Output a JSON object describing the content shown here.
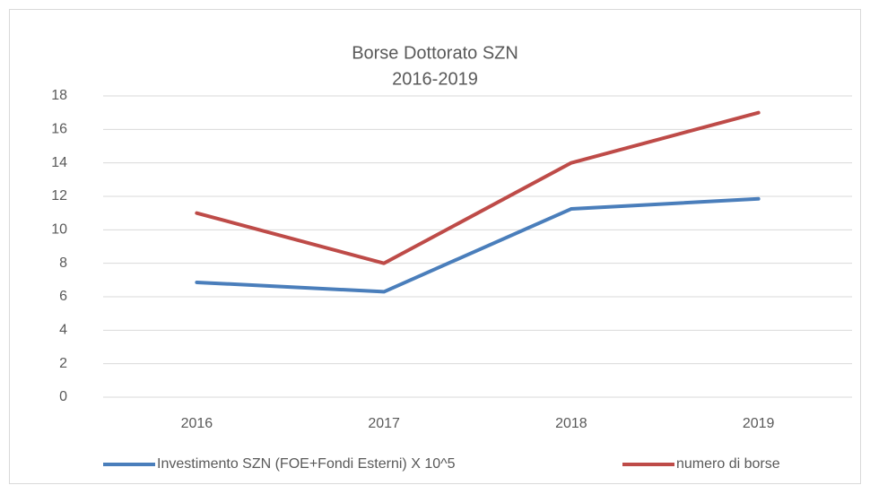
{
  "chart_data": {
    "type": "line",
    "title": "Borse Dottorato SZN",
    "subtitle": "2016-2019",
    "categories": [
      "2016",
      "2017",
      "2018",
      "2019"
    ],
    "series": [
      {
        "name": "Investimento SZN (FOE+Fondi Esterni) X 10^5",
        "color": "#4a7ebb",
        "values": [
          6.86,
          6.3,
          11.25,
          11.85
        ]
      },
      {
        "name": "numero di borse",
        "color": "#be4b48",
        "values": [
          11,
          8,
          14,
          17
        ]
      }
    ],
    "ylim": [
      0,
      18
    ],
    "yticks": [
      0,
      2,
      4,
      6,
      8,
      10,
      12,
      14,
      16,
      18
    ],
    "grid": true,
    "legend": "bottom"
  }
}
